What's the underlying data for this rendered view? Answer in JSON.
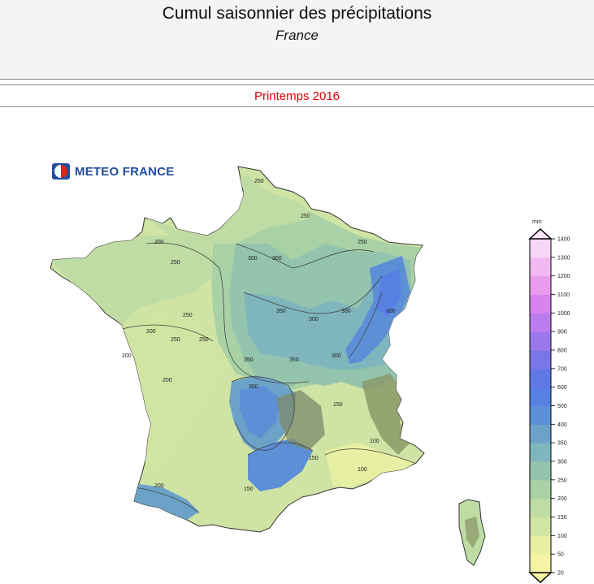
{
  "header": {
    "title": "Cumul saisonnier des précipitations",
    "subtitle": "France"
  },
  "season": {
    "label": "Printemps 2016",
    "color": "#e00000"
  },
  "logo": {
    "text": "METEO FRANCE",
    "icon": "meteo-france-logo-icon",
    "color": "#1f4e9c"
  },
  "legend": {
    "unit": "mm",
    "levels": [
      20,
      50,
      100,
      150,
      200,
      250,
      300,
      350,
      400,
      500,
      600,
      700,
      800,
      900,
      1000,
      1100,
      1200,
      1300,
      1400
    ],
    "colors": [
      "#f5f3a4",
      "#e6efa2",
      "#d1e5a2",
      "#bfdca4",
      "#a9d1a6",
      "#94c4ae",
      "#7fb5bc",
      "#6ca2c8",
      "#5c8fd6",
      "#5880e2",
      "#6078e6",
      "#7a76e8",
      "#9a78ec",
      "#bb7cee",
      "#d884ee",
      "#e89cee",
      "#f2b8f2",
      "#f8d6f6"
    ]
  },
  "map": {
    "contour_labels": [
      "250",
      "250",
      "250",
      "200",
      "250",
      "300",
      "300",
      "300",
      "300",
      "300",
      "350",
      "350",
      "350",
      "300",
      "250",
      "200",
      "250",
      "250",
      "200",
      "200",
      "300",
      "150",
      "100",
      "100",
      "150",
      "200",
      "150"
    ]
  }
}
